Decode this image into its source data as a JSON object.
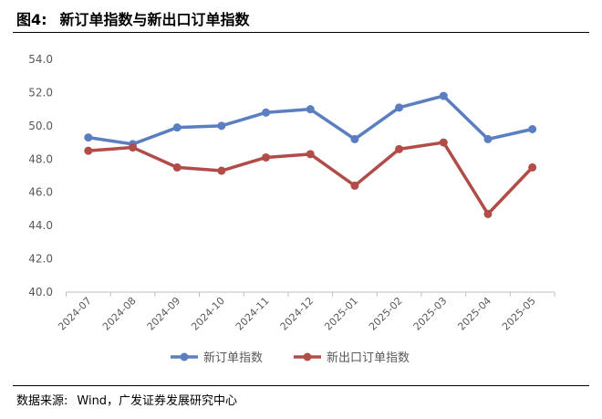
{
  "figure_label": "图4:",
  "figure_title": "新订单指数与新出口订单指数",
  "source_label": "数据来源:",
  "source_text": "Wind，广发证券发展研究中心",
  "chart_data": {
    "type": "line",
    "categories": [
      "2024-07",
      "2024-08",
      "2024-09",
      "2024-10",
      "2024-11",
      "2024-12",
      "2025-01",
      "2025-02",
      "2025-03",
      "2025-04",
      "2025-05"
    ],
    "series": [
      {
        "name": "新订单指数",
        "color": "#5b7ec0",
        "values": [
          49.3,
          48.9,
          49.9,
          50.0,
          50.8,
          51.0,
          49.2,
          51.1,
          51.8,
          49.2,
          49.8
        ]
      },
      {
        "name": "新出口订单指数",
        "color": "#b24c48",
        "values": [
          48.5,
          48.7,
          47.5,
          47.3,
          48.1,
          48.3,
          46.4,
          48.6,
          49.0,
          44.7,
          47.5
        ]
      }
    ],
    "ylim": [
      40,
      54
    ],
    "yticks": [
      "40.0",
      "42.0",
      "44.0",
      "46.0",
      "48.0",
      "50.0",
      "52.0",
      "54.0"
    ],
    "grid": false,
    "legend": "bottom"
  }
}
